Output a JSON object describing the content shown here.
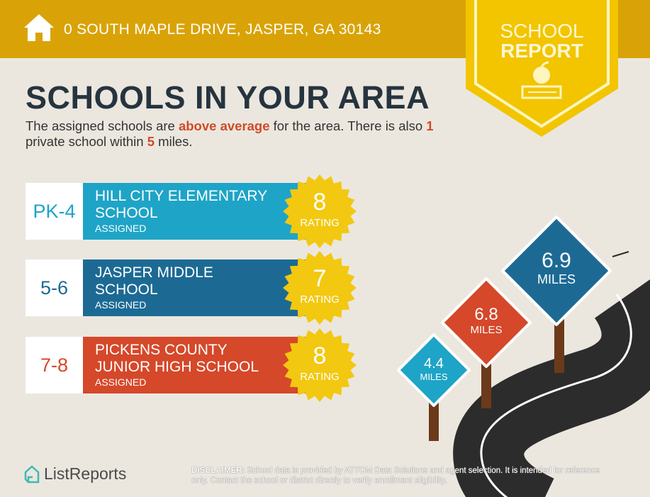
{
  "header": {
    "address": "0 SOUTH MAPLE DRIVE, JASPER, GA 30143",
    "badge_line1": "SCHOOL",
    "badge_line2": "REPORT"
  },
  "main": {
    "title": "SCHOOLS IN YOUR AREA",
    "intro": {
      "p1": "The assigned schools are ",
      "highlight1": "above average",
      "p2": " for the area. There is also ",
      "highlight2": "1",
      "p3": " private school within ",
      "highlight3": "5",
      "p4": " miles."
    },
    "schools": [
      {
        "grades": "PK-4",
        "name": "HILL CITY ELEMENTARY SCHOOL",
        "status": "ASSIGNED",
        "rating": "8",
        "rating_label": "RATING",
        "color": "#1ea4c7"
      },
      {
        "grades": "5-6",
        "name": "JASPER MIDDLE SCHOOL",
        "status": "ASSIGNED",
        "rating": "7",
        "rating_label": "RATING",
        "color": "#1c6a94"
      },
      {
        "grades": "7-8",
        "name": "PICKENS COUNTY JUNIOR HIGH SCHOOL",
        "status": "ASSIGNED",
        "rating": "8",
        "rating_label": "RATING",
        "color": "#d5482a"
      }
    ]
  },
  "signs": [
    {
      "distance": "6.9",
      "unit": "MILES",
      "color": "#1c6a94"
    },
    {
      "distance": "6.8",
      "unit": "MILES",
      "color": "#d5482a"
    },
    {
      "distance": "4.4",
      "unit": "MILES",
      "color": "#1ea4c7"
    }
  ],
  "footer": {
    "brand": "ListReports",
    "disclaimer_label": "DISCLAIMER:",
    "disclaimer": " School data is provided by ATTOM Data Solutions and agent selection. It is intended for reference only. Contact the school or district directly to verify enrollment eligibility."
  },
  "colors": {
    "header": "#d9a307",
    "badge": "#f2c500",
    "rating_burst": "#f2c811",
    "road": "#2c2c2c"
  }
}
